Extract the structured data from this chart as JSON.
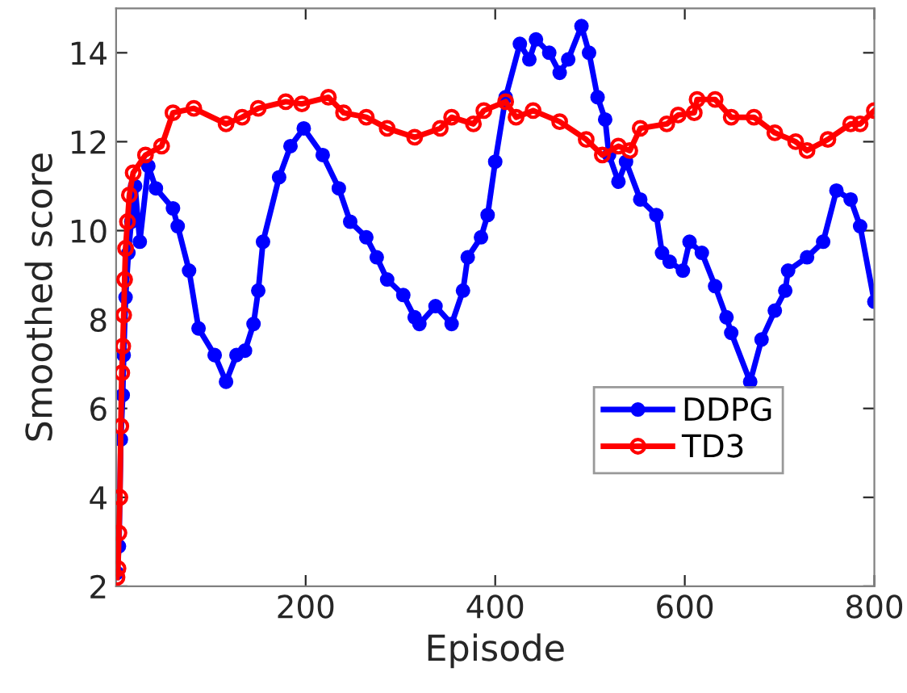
{
  "chart_data": {
    "type": "line",
    "xlabel": "Episode",
    "ylabel": "Smoothed score",
    "xlim": [
      0,
      800
    ],
    "ylim": [
      2,
      15
    ],
    "xticks": [
      200,
      400,
      600,
      800
    ],
    "yticks": [
      2,
      4,
      6,
      8,
      10,
      12,
      14
    ],
    "grid": false,
    "legend": "right",
    "marker": "circle",
    "line_style": "solid",
    "series": [
      {
        "name": "DDPG",
        "color": "#0000ff",
        "x": [
          1,
          3,
          5,
          7,
          8,
          10,
          13,
          16,
          20,
          25,
          34,
          42,
          60,
          65,
          77,
          87,
          104,
          116,
          127,
          136,
          145,
          150,
          155,
          172,
          184,
          198,
          218,
          235,
          247,
          264,
          275,
          286,
          303,
          315,
          320,
          337,
          354,
          366,
          371,
          385,
          392,
          400,
          411,
          426,
          436,
          443,
          457,
          468,
          477,
          491,
          499,
          508,
          516,
          520,
          530,
          538,
          553,
          570,
          576,
          584,
          598,
          605,
          618,
          632,
          644,
          649,
          669,
          681,
          695,
          706,
          709,
          729,
          746,
          760,
          775,
          785,
          800
        ],
        "values": [
          2.3,
          2.9,
          5.3,
          6.3,
          7.2,
          8.5,
          9.5,
          10.2,
          11.0,
          9.75,
          11.45,
          10.95,
          10.5,
          10.1,
          9.1,
          7.8,
          7.2,
          6.6,
          7.2,
          7.3,
          7.9,
          8.65,
          9.75,
          11.2,
          11.9,
          12.3,
          11.7,
          10.95,
          10.2,
          9.85,
          9.4,
          8.9,
          8.55,
          8.05,
          7.9,
          8.3,
          7.9,
          8.65,
          9.4,
          9.85,
          10.35,
          11.55,
          13.0,
          14.2,
          13.85,
          14.3,
          14.0,
          13.55,
          13.85,
          14.6,
          14.0,
          13.0,
          12.5,
          11.7,
          11.1,
          11.55,
          10.7,
          10.35,
          9.5,
          9.3,
          9.1,
          9.75,
          9.5,
          8.75,
          8.05,
          7.7,
          6.6,
          7.55,
          8.2,
          8.65,
          9.1,
          9.4,
          9.75,
          10.9,
          10.7,
          10.1,
          8.4
        ]
      },
      {
        "name": "TD3",
        "color": "#ff0000",
        "x": [
          1,
          2,
          3,
          4,
          5,
          6,
          7,
          8,
          9,
          10,
          12,
          14,
          18,
          31,
          48,
          60,
          82,
          116,
          133,
          150,
          179,
          196,
          224,
          240,
          264,
          286,
          315,
          342,
          354,
          377,
          388,
          411,
          422,
          440,
          468,
          496,
          513,
          530,
          542,
          553,
          581,
          593,
          610,
          613,
          632,
          649,
          673,
          695,
          717,
          729,
          751,
          775,
          785,
          800
        ],
        "values": [
          2.2,
          2.4,
          3.2,
          4.0,
          5.6,
          6.8,
          7.4,
          8.1,
          8.9,
          9.6,
          10.2,
          10.8,
          11.3,
          11.7,
          11.9,
          12.65,
          12.75,
          12.4,
          12.55,
          12.75,
          12.9,
          12.85,
          13.0,
          12.65,
          12.55,
          12.3,
          12.1,
          12.3,
          12.55,
          12.4,
          12.7,
          12.9,
          12.55,
          12.7,
          12.45,
          12.05,
          11.7,
          11.9,
          11.8,
          12.3,
          12.4,
          12.6,
          12.65,
          12.95,
          12.95,
          12.55,
          12.55,
          12.2,
          12.0,
          11.8,
          12.05,
          12.4,
          12.4,
          12.7
        ]
      }
    ]
  }
}
